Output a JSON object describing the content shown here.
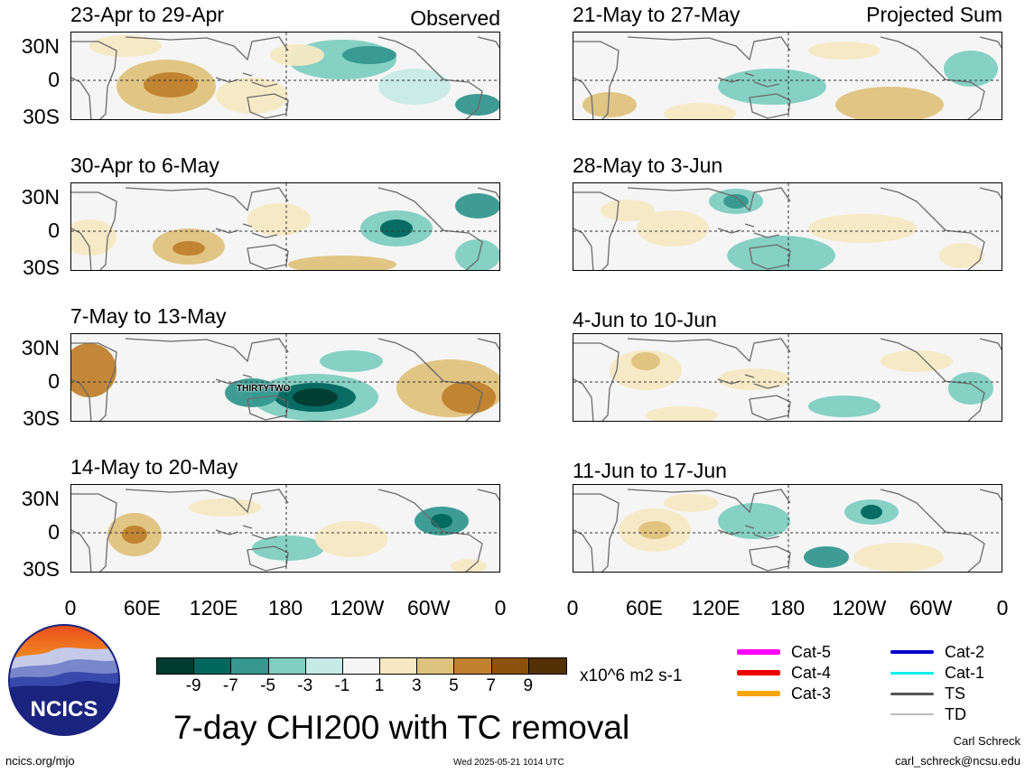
{
  "header": {
    "left_label": "Observed",
    "right_label": "Projected Sum"
  },
  "panels": {
    "left": [
      {
        "title": "23-Apr to 29-Apr",
        "annotation": ""
      },
      {
        "title": "30-Apr to 6-May",
        "annotation": ""
      },
      {
        "title": "7-May to 13-May",
        "annotation": "THIRTYTWO"
      },
      {
        "title": "14-May to 20-May",
        "annotation": ""
      }
    ],
    "right": [
      {
        "title": "21-May to 27-May"
      },
      {
        "title": "28-May to 3-Jun"
      },
      {
        "title": "4-Jun to 10-Jun"
      },
      {
        "title": "11-Jun to 17-Jun"
      }
    ]
  },
  "axes": {
    "lat_labels": [
      "30N",
      "0",
      "30S"
    ],
    "lon_labels": [
      "0",
      "60E",
      "120E",
      "180",
      "120W",
      "60W",
      "0"
    ]
  },
  "colorbar": {
    "labels": [
      "-9",
      "-7",
      "-5",
      "-3",
      "-1",
      "1",
      "3",
      "5",
      "7",
      "9"
    ],
    "colors": [
      "#003c30",
      "#01665e",
      "#35978f",
      "#80cdc1",
      "#c7eae5",
      "#f5f5f5",
      "#f6e8c3",
      "#dfc27d",
      "#bf812d",
      "#8c510a",
      "#543005"
    ],
    "units": "x10^6 m2 s-1"
  },
  "tc_legend": [
    {
      "label": "Cat-5",
      "color": "#ff00ff"
    },
    {
      "label": "Cat-2",
      "color": "#0000cc"
    },
    {
      "label": "Cat-4",
      "color": "#ee0000"
    },
    {
      "label": "Cat-1",
      "color": "#00eeee"
    },
    {
      "label": "Cat-3",
      "color": "#ffa500"
    },
    {
      "label": "TS",
      "color": "#555555"
    },
    {
      "label": "TD",
      "color": "#bbbbbb"
    }
  ],
  "footer": {
    "title": "7-day CHI200 with TC removal",
    "logo_text": "NCICS",
    "website": "ncics.org/mjo",
    "timestamp": "Wed 2025-05-21 1014 UTC",
    "author": "Carl Schreck",
    "email": "carl_schreck@ncsu.edu"
  }
}
